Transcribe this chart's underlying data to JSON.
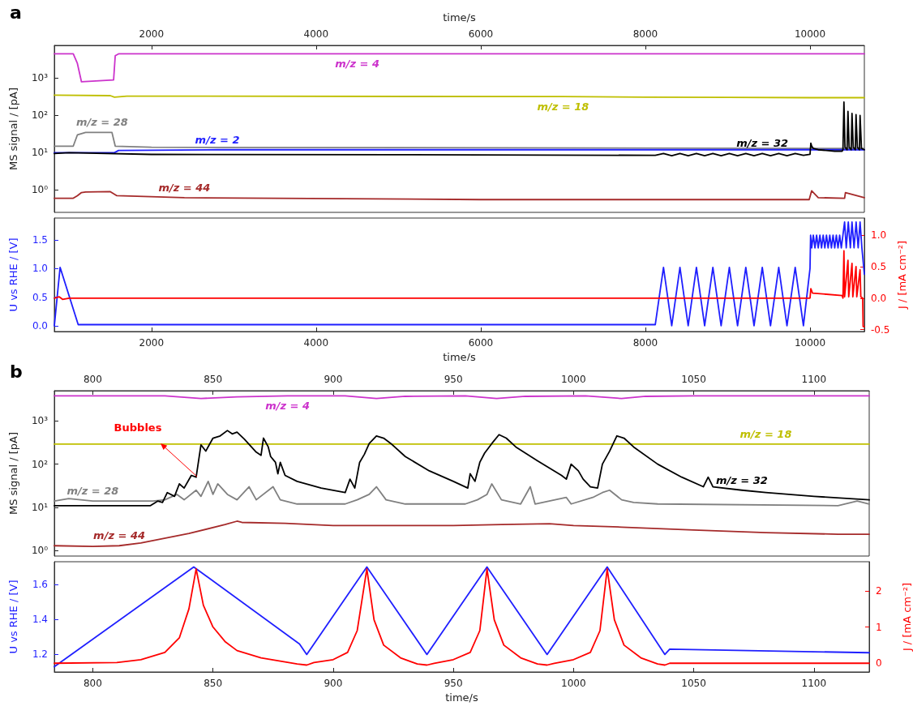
{
  "chart_data": [
    {
      "type": "line",
      "log": "y",
      "annotations": [
        "a"
      ],
      "xlabel": "time/s",
      "ylabel": "MS signal / [pA]",
      "xlim": [
        820,
        10660
      ],
      "xticks": [
        2000,
        4000,
        6000,
        8000,
        10000
      ],
      "ylim": [
        0.25,
        7600
      ],
      "yticks": [
        {
          "value": 1,
          "label": "10⁰"
        },
        {
          "value": 10,
          "label": "10¹"
        },
        {
          "value": 100,
          "label": "10²"
        },
        {
          "value": 1000,
          "label": "10³"
        }
      ],
      "series": [
        {
          "name": "m/z = 4",
          "color": "#cc33cc",
          "x": [
            820,
            1050,
            1100,
            1150,
            1540,
            1560,
            1600,
            3000,
            4500,
            5000,
            6000,
            7000,
            8000,
            9000,
            10000,
            10300,
            10660
          ],
          "values": [
            4500,
            4500,
            2500,
            800,
            900,
            4000,
            4500,
            4500,
            4500,
            4500,
            4500,
            4500,
            4500,
            4500,
            4500,
            4500,
            4500
          ]
        },
        {
          "name": "m/z = 18",
          "color": "#bfbf00",
          "x": [
            820,
            1500,
            1550,
            1700,
            7000,
            8000,
            9000,
            10000,
            10660
          ],
          "values": [
            350,
            340,
            310,
            330,
            320,
            310,
            305,
            300,
            300
          ]
        },
        {
          "name": "m/z = 28",
          "color": "#808080",
          "x": [
            820,
            1050,
            1100,
            1200,
            1400,
            1520,
            1560,
            2000,
            10660
          ],
          "values": [
            15,
            15,
            30,
            35,
            35,
            35,
            15,
            14,
            13
          ]
        },
        {
          "name": "m/z = 2",
          "color": "#1f1fff",
          "x": [
            820,
            1550,
            1600,
            2800,
            6000,
            10660
          ],
          "values": [
            10,
            10,
            11.5,
            12,
            12,
            12
          ]
        },
        {
          "name": "m/z = 32",
          "color": "#000000",
          "x": [
            820,
            1000,
            2000,
            5000,
            8120,
            8220,
            8320,
            8420,
            8520,
            8620,
            8720,
            8820,
            8920,
            9020,
            9120,
            9220,
            9320,
            9420,
            9520,
            9620,
            9720,
            9820,
            9920,
            10000,
            10010,
            10020,
            10040,
            10100,
            10200,
            10300,
            10390,
            10400,
            10412,
            10425,
            10450,
            10461,
            10475,
            10500,
            10510,
            10525,
            10550,
            10559,
            10575,
            10600,
            10608,
            10625,
            10660
          ],
          "values": [
            9.5,
            10,
            9,
            8.8,
            8.5,
            9.5,
            8.3,
            9.5,
            8.3,
            9.5,
            8.3,
            9.5,
            8.3,
            9.5,
            8.3,
            9.5,
            8.3,
            9.5,
            8.3,
            9.5,
            8.3,
            9.5,
            8.5,
            9,
            18,
            15,
            13,
            12,
            11.5,
            11,
            11,
            12,
            230,
            14,
            12,
            128,
            14,
            12,
            113,
            14,
            12,
            105,
            14,
            12,
            100,
            13,
            12
          ]
        },
        {
          "name": "m/z = 44",
          "color": "#a52a2a",
          "x": [
            820,
            1050,
            1100,
            1150,
            1200,
            1500,
            1580,
            2400,
            6000,
            9990,
            10020,
            10100,
            10420,
            10430,
            10660
          ],
          "values": [
            0.6,
            0.6,
            0.7,
            0.85,
            0.88,
            0.9,
            0.7,
            0.62,
            0.55,
            0.55,
            0.95,
            0.62,
            0.6,
            0.85,
            0.62
          ]
        }
      ]
    },
    {
      "type": "line",
      "xlabel": "time/s",
      "ylabel": "U vs RHE / [V]",
      "y2label": "J / [mA cm⁻²]",
      "xlim": [
        820,
        10660
      ],
      "xticks": [
        2000,
        4000,
        6000,
        8000,
        10000
      ],
      "ylim": [
        -0.1,
        1.88
      ],
      "yticks": [
        {
          "value": 0,
          "label": "0.0"
        },
        0.5,
        {
          "value": 1,
          "label": "1.0"
        },
        1.5
      ],
      "y2lim": [
        -0.53,
        1.27
      ],
      "y2ticks": [
        -0.5,
        {
          "value": 0,
          "label": "0.0"
        },
        0.5,
        {
          "value": 1,
          "label": "1.0"
        }
      ],
      "series": [
        {
          "color": "#1f1fff",
          "x": [
            820,
            890,
            1110,
            8120,
            8220,
            8320,
            8420,
            8520,
            8620,
            8720,
            8820,
            8920,
            9020,
            9120,
            9220,
            9320,
            9420,
            9520,
            9620,
            9720,
            9820,
            9920,
            10000,
            10007,
            10020,
            10040,
            10060,
            10080,
            10100,
            10120,
            10140,
            10160,
            10180,
            10200,
            10220,
            10240,
            10260,
            10280,
            10300,
            10320,
            10340,
            10360,
            10380,
            10420,
            10440,
            10465,
            10490,
            10510,
            10535,
            10560,
            10585,
            10608,
            10630,
            10660
          ],
          "values": [
            0,
            1.02,
            0.02,
            0.02,
            1.02,
            0,
            1.02,
            0,
            1.02,
            0,
            1.02,
            0,
            1.02,
            0,
            1.02,
            0,
            1.02,
            0,
            1.02,
            0,
            1.02,
            0,
            1.0,
            1.58,
            1.36,
            1.58,
            1.36,
            1.58,
            1.36,
            1.58,
            1.36,
            1.58,
            1.36,
            1.58,
            1.36,
            1.58,
            1.36,
            1.58,
            1.36,
            1.58,
            1.36,
            1.58,
            1.36,
            1.81,
            1.36,
            1.81,
            1.36,
            1.81,
            1.36,
            1.81,
            1.36,
            1.81,
            1.36,
            0.9
          ]
        },
        {
          "color": "#ff0000",
          "axis": "y2",
          "x": [
            820,
            880,
            920,
            1000,
            8120,
            10000,
            10010,
            10030,
            10390,
            10400,
            10412,
            10420,
            10461,
            10470,
            10510,
            10520,
            10559,
            10568,
            10608,
            10617,
            10640,
            10645,
            10660
          ],
          "values": [
            0,
            0.02,
            -0.02,
            0,
            0,
            0,
            0.15,
            0.08,
            0.04,
            0,
            0.75,
            0.02,
            0.6,
            0.02,
            0.55,
            0.02,
            0.5,
            0.02,
            0.45,
            0.02,
            0,
            -0.45,
            -0.45
          ]
        }
      ]
    },
    {
      "type": "line",
      "log": "y",
      "annotations": [
        "b",
        "Bubbles"
      ],
      "ylabel": "MS signal / [pA]",
      "xlim": [
        784,
        1123
      ],
      "xticks": [
        800,
        850,
        900,
        950,
        1000,
        1050,
        1100
      ],
      "ylim": [
        0.75,
        5000
      ],
      "yticks": [
        {
          "value": 1,
          "label": "10⁰"
        },
        {
          "value": 10,
          "label": "10¹"
        },
        {
          "value": 100,
          "label": "10²"
        },
        {
          "value": 1000,
          "label": "10³"
        }
      ],
      "series": [
        {
          "name": "m/z = 4",
          "color": "#cc33cc",
          "x": [
            784,
            830,
            845,
            860,
            881,
            905,
            918,
            930,
            955,
            968,
            980,
            1005,
            1020,
            1030,
            1050,
            1123
          ],
          "values": [
            3800,
            3800,
            3300,
            3600,
            3800,
            3800,
            3300,
            3700,
            3800,
            3300,
            3700,
            3800,
            3300,
            3700,
            3800,
            3800
          ]
        },
        {
          "name": "m/z = 18",
          "color": "#bfbf00",
          "x": [
            784,
            900,
            1000,
            1080,
            1100,
            1123
          ],
          "values": [
            290,
            290,
            290,
            290,
            290,
            290
          ]
        },
        {
          "name": "m/z = 28",
          "color": "#808080",
          "x": [
            784,
            790,
            800,
            825,
            830,
            835,
            838,
            843,
            845,
            848,
            850,
            852,
            856,
            860,
            865,
            868,
            875,
            878,
            885,
            905,
            910,
            915,
            918,
            922,
            930,
            955,
            960,
            964,
            966,
            970,
            978,
            982,
            984,
            997,
            999,
            1008,
            1012,
            1015,
            1020,
            1025,
            1035,
            1110,
            1118,
            1123
          ],
          "values": [
            14,
            16,
            14,
            14,
            15,
            20,
            15,
            25,
            18,
            40,
            20,
            35,
            20,
            15,
            30,
            15,
            30,
            15,
            12,
            12,
            15,
            20,
            30,
            15,
            12,
            12,
            15,
            20,
            35,
            15,
            12,
            30,
            12,
            17,
            12,
            17,
            22,
            25,
            15,
            13,
            12,
            11,
            14,
            12
          ]
        },
        {
          "name": "m/z = 32",
          "color": "#000000",
          "x": [
            784,
            824,
            827,
            829,
            831,
            834,
            836,
            838,
            841,
            843,
            845,
            847,
            850,
            853,
            856,
            858,
            860,
            863,
            866,
            868,
            870,
            871,
            873,
            874,
            876,
            877,
            878,
            880,
            885,
            895,
            905,
            907,
            909,
            911,
            913,
            915,
            918,
            921,
            924,
            930,
            940,
            950,
            956,
            957,
            959,
            961,
            963,
            966,
            969,
            972,
            976,
            985,
            995,
            997,
            999,
            1002,
            1004,
            1007,
            1010,
            1012,
            1015,
            1018,
            1021,
            1025,
            1035,
            1045,
            1054,
            1056,
            1058,
            1070,
            1080,
            1100,
            1123
          ],
          "values": [
            11,
            11,
            14,
            13,
            22,
            18,
            35,
            28,
            55,
            50,
            280,
            200,
            400,
            450,
            600,
            500,
            550,
            380,
            250,
            190,
            160,
            400,
            250,
            150,
            110,
            60,
            110,
            55,
            40,
            28,
            22,
            45,
            28,
            110,
            170,
            300,
            450,
            400,
            300,
            150,
            70,
            40,
            28,
            60,
            40,
            110,
            180,
            300,
            480,
            400,
            250,
            120,
            55,
            45,
            100,
            70,
            45,
            30,
            28,
            100,
            200,
            450,
            400,
            250,
            100,
            50,
            30,
            50,
            30,
            25,
            22,
            18,
            15
          ]
        },
        {
          "name": "m/z = 44",
          "color": "#a52a2a",
          "x": [
            784,
            800,
            811,
            820,
            840,
            855,
            860,
            862,
            880,
            900,
            920,
            950,
            970,
            990,
            1000,
            1020,
            1050,
            1080,
            1110,
            1123
          ],
          "values": [
            1.3,
            1.25,
            1.3,
            1.5,
            2.5,
            4,
            4.8,
            4.5,
            4.3,
            3.8,
            3.8,
            3.8,
            4.0,
            4.2,
            3.8,
            3.5,
            3.0,
            2.6,
            2.4,
            2.4
          ]
        }
      ]
    },
    {
      "type": "line",
      "xlabel": "time/s",
      "ylabel": "U vs RHE / [V]",
      "y2label": "J / [mA cm⁻²]",
      "xlim": [
        784,
        1123
      ],
      "xticks": [
        800,
        850,
        900,
        950,
        1000,
        1050,
        1100
      ],
      "ylim": [
        1.1,
        1.73
      ],
      "yticks": [
        1.2,
        1.4,
        1.6
      ],
      "y2lim": [
        -0.24,
        2.8
      ],
      "y2ticks": [
        0,
        1,
        2
      ],
      "series": [
        {
          "color": "#1f1fff",
          "x": [
            784,
            842,
            886,
            889,
            914,
            939,
            964,
            989,
            1014,
            1038,
            1040,
            1123
          ],
          "values": [
            1.13,
            1.7,
            1.26,
            1.2,
            1.7,
            1.2,
            1.7,
            1.2,
            1.7,
            1.2,
            1.23,
            1.21
          ]
        },
        {
          "color": "#ff0000",
          "axis": "y2",
          "x": [
            784,
            810,
            820,
            830,
            836,
            840,
            843,
            846,
            850,
            855,
            860,
            870,
            885,
            889,
            892,
            900,
            906,
            910,
            914,
            917,
            921,
            928,
            935,
            939,
            942,
            950,
            957,
            961,
            964,
            967,
            971,
            978,
            985,
            989,
            992,
            1000,
            1007,
            1011,
            1014,
            1017,
            1021,
            1028,
            1035,
            1038,
            1040,
            1123
          ],
          "values": [
            0,
            0.02,
            0.1,
            0.3,
            0.7,
            1.5,
            2.6,
            1.6,
            1.0,
            0.6,
            0.35,
            0.15,
            -0.02,
            -0.05,
            0.02,
            0.1,
            0.3,
            0.9,
            2.6,
            1.2,
            0.5,
            0.15,
            -0.02,
            -0.05,
            0,
            0.1,
            0.3,
            0.9,
            2.6,
            1.2,
            0.5,
            0.15,
            -0.02,
            -0.05,
            0,
            0.1,
            0.3,
            0.9,
            2.6,
            1.2,
            0.5,
            0.15,
            -0.02,
            -0.05,
            0,
            0
          ]
        }
      ]
    }
  ]
}
